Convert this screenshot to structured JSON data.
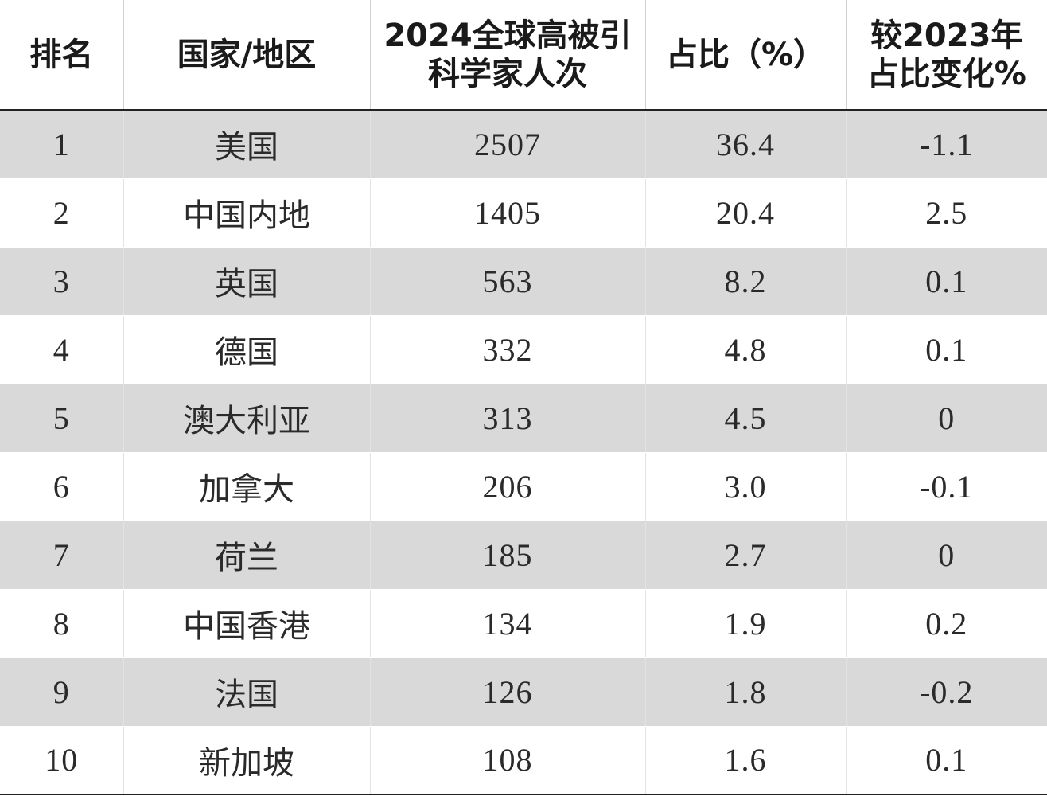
{
  "table": {
    "headers": {
      "rank": "排名",
      "region": "国家/地区",
      "count_line1": "2024全球高被引",
      "count_line2": "科学家人次",
      "share": "占比（%）",
      "change_line1": "较2023年",
      "change_line2": "占比变化%"
    },
    "rows": [
      {
        "rank": "1",
        "region": "美国",
        "count": "2507",
        "share": "36.4",
        "change": "-1.1"
      },
      {
        "rank": "2",
        "region": "中国内地",
        "count": "1405",
        "share": "20.4",
        "change": "2.5"
      },
      {
        "rank": "3",
        "region": "英国",
        "count": "563",
        "share": "8.2",
        "change": "0.1"
      },
      {
        "rank": "4",
        "region": "德国",
        "count": "332",
        "share": "4.8",
        "change": "0.1"
      },
      {
        "rank": "5",
        "region": "澳大利亚",
        "count": "313",
        "share": "4.5",
        "change": "0"
      },
      {
        "rank": "6",
        "region": "加拿大",
        "count": "206",
        "share": "3.0",
        "change": "-0.1"
      },
      {
        "rank": "7",
        "region": "荷兰",
        "count": "185",
        "share": "2.7",
        "change": "0"
      },
      {
        "rank": "8",
        "region": "中国香港",
        "count": "134",
        "share": "1.9",
        "change": "0.2"
      },
      {
        "rank": "9",
        "region": "法国",
        "count": "126",
        "share": "1.8",
        "change": "-0.2"
      },
      {
        "rank": "10",
        "region": "新加坡",
        "count": "108",
        "share": "1.6",
        "change": "0.1"
      }
    ],
    "colors": {
      "shaded_row": "#d9d9d9",
      "plain_row": "#ffffff",
      "rule": "#222222"
    }
  }
}
